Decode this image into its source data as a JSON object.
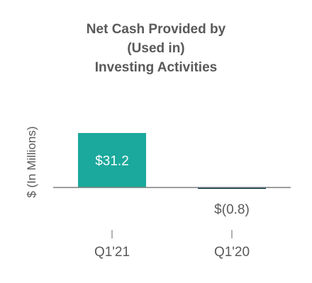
{
  "chart_data": {
    "type": "bar",
    "title_lines": [
      "Net Cash Provided by",
      "(Used in)",
      "Investing Activities"
    ],
    "ylabel": "$ (In Millions)",
    "xlabel": "",
    "categories": [
      "Q1'21",
      "Q1'20"
    ],
    "values": [
      31.2,
      -0.8
    ],
    "data_labels": [
      "$31.2",
      "$(0.8)"
    ],
    "ylim": [
      -10,
      32
    ],
    "grid": false,
    "legend": "none",
    "colors": {
      "bars": [
        "#1aa99c",
        "#0d3b4f"
      ],
      "label_inside": "#ffffff",
      "label_outside": "#595959",
      "axis": "#7f7f7f",
      "text": "#595959"
    }
  }
}
